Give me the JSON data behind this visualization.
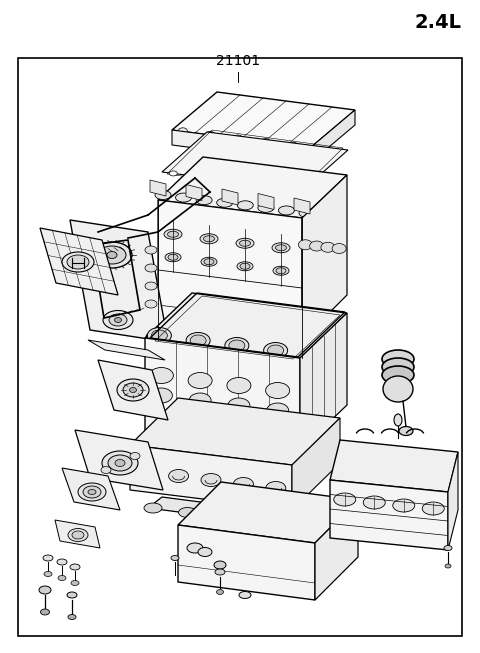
{
  "title_right": "2.4L",
  "part_number": "21101",
  "background_color": "#ffffff",
  "border_color": "#000000",
  "text_color": "#000000",
  "title_fontsize": 14,
  "part_number_fontsize": 10,
  "fig_width": 4.8,
  "fig_height": 6.53,
  "dpi": 100
}
